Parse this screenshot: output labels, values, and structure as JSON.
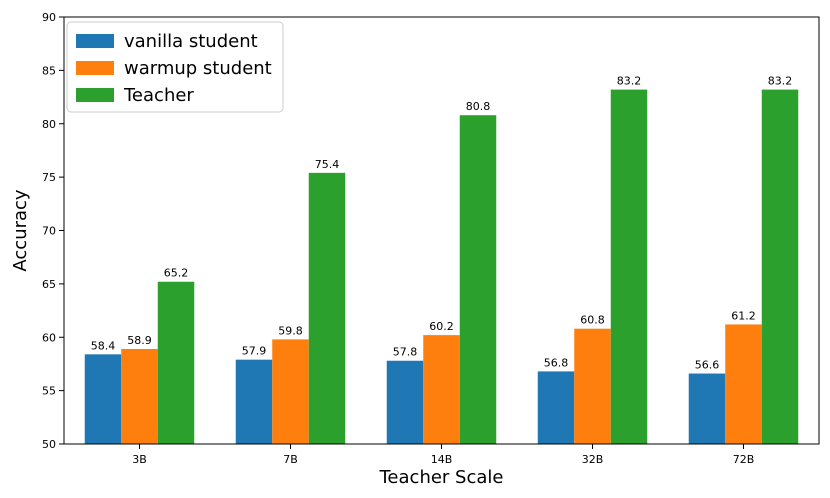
{
  "chart_data": {
    "type": "bar",
    "title": "",
    "xlabel": "Teacher Scale",
    "ylabel": "Accuracy",
    "ylim": [
      50,
      90
    ],
    "yticks": [
      50,
      55,
      60,
      65,
      70,
      75,
      80,
      85,
      90
    ],
    "categories": [
      "3B",
      "7B",
      "14B",
      "32B",
      "72B"
    ],
    "series": [
      {
        "name": "vanilla student",
        "color": "#1f77b4",
        "values": [
          58.4,
          57.9,
          57.8,
          56.8,
          56.6
        ]
      },
      {
        "name": "warmup student",
        "color": "#ff7f0e",
        "values": [
          58.9,
          59.8,
          60.2,
          60.8,
          61.2
        ]
      },
      {
        "name": "Teacher",
        "color": "#2ca02c",
        "values": [
          65.2,
          75.4,
          80.8,
          83.2,
          83.2
        ]
      }
    ],
    "legend_position": "top-left",
    "grid": false
  }
}
